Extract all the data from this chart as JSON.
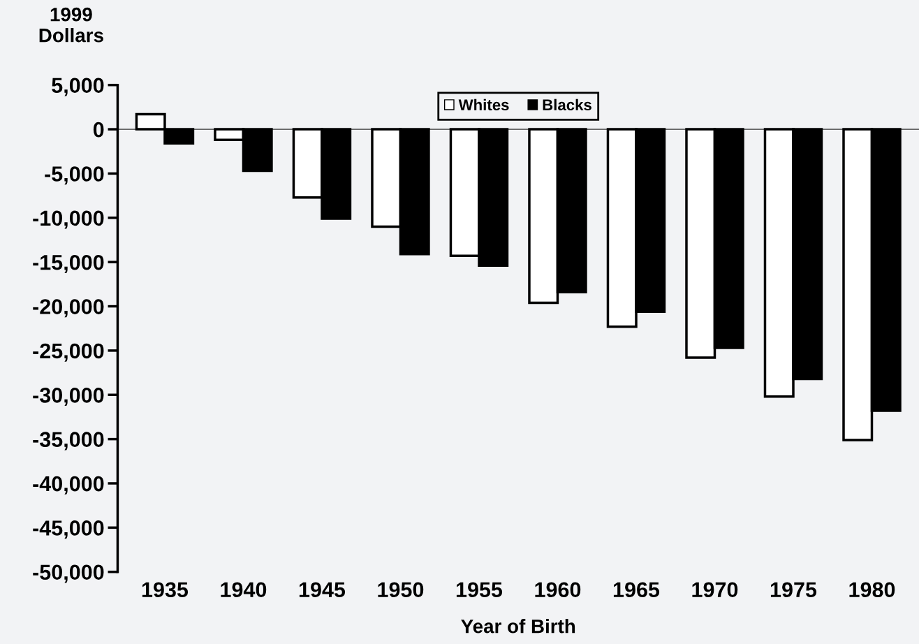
{
  "chart_data": {
    "type": "bar",
    "xlabel": "Year of Birth",
    "ylabel": "1999\nDollars",
    "categories": [
      "1935",
      "1940",
      "1945",
      "1950",
      "1955",
      "1960",
      "1965",
      "1970",
      "1975",
      "1980"
    ],
    "series": [
      {
        "name": "Whites",
        "color": "#ffffff",
        "values": [
          1700,
          -1200,
          -7700,
          -11000,
          -14300,
          -19600,
          -22300,
          -25800,
          -30200,
          -35100
        ]
      },
      {
        "name": "Blacks",
        "color": "#000000",
        "values": [
          -1600,
          -4700,
          -10100,
          -14100,
          -15400,
          -18400,
          -20600,
          -24700,
          -28200,
          -31800
        ]
      }
    ],
    "ylim": [
      -50000,
      5000
    ],
    "yticks": [
      {
        "value": 5000,
        "label": "5,000"
      },
      0,
      {
        "value": -5000,
        "label": "-5,000"
      },
      {
        "value": -10000,
        "label": "-10,000"
      },
      {
        "value": -15000,
        "label": "-15,000"
      },
      {
        "value": -20000,
        "label": "-20,000"
      },
      {
        "value": -25000,
        "label": "-25,000"
      },
      {
        "value": -30000,
        "label": "-30,000"
      },
      {
        "value": -35000,
        "label": "-35,000"
      },
      {
        "value": -40000,
        "label": "-40,000"
      },
      {
        "value": -45000,
        "label": "-45,000"
      },
      {
        "value": -50000,
        "label": "-50,000"
      }
    ],
    "ref_lines": [
      {
        "axis": "y",
        "value": 0,
        "color": "#666666"
      }
    ],
    "legend": "top",
    "grid": false
  }
}
